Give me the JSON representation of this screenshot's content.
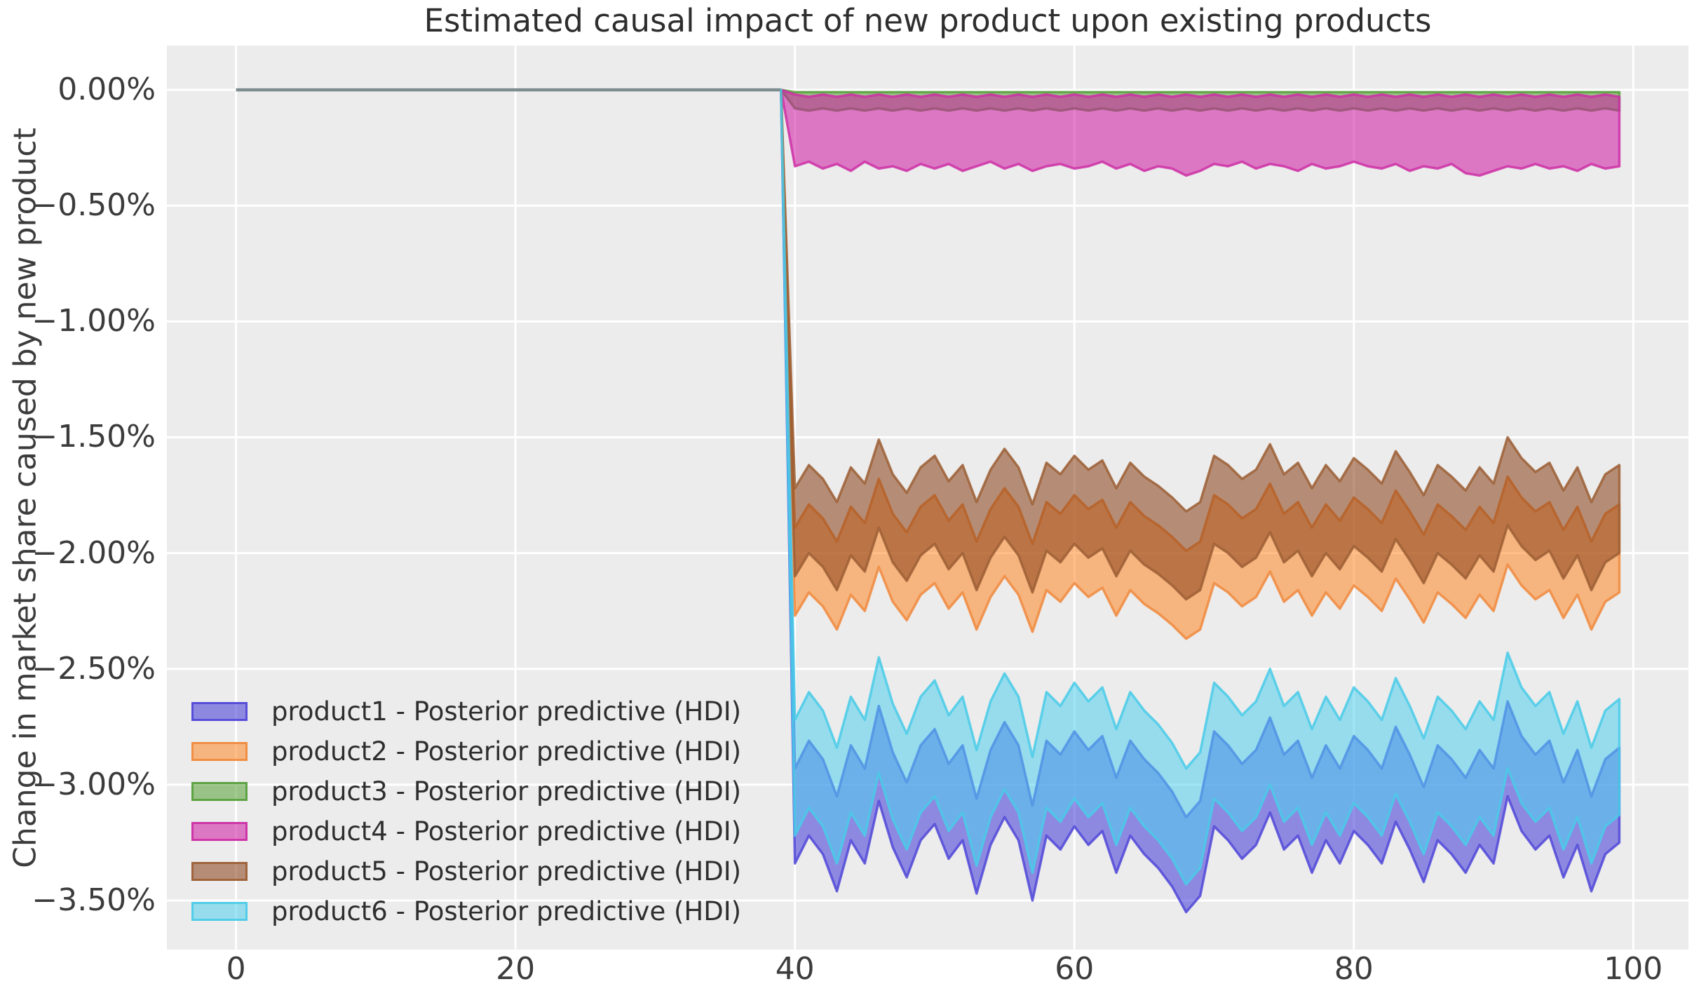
{
  "title": "Estimated causal impact of new product upon existing products",
  "axes": {
    "ylabel": "Change in market share caused by new product",
    "x_ticks": [
      {
        "value": 0,
        "label": "0"
      },
      {
        "value": 20,
        "label": "20"
      },
      {
        "value": 40,
        "label": "40"
      },
      {
        "value": 60,
        "label": "60"
      },
      {
        "value": 80,
        "label": "80"
      },
      {
        "value": 100,
        "label": "100"
      }
    ],
    "y_ticks": [
      {
        "value": 0,
        "label": "0.00%"
      },
      {
        "value": -0.5,
        "label": "−0.50%"
      },
      {
        "value": -1,
        "label": "−1.00%"
      },
      {
        "value": -1.5,
        "label": "−1.50%"
      },
      {
        "value": -2,
        "label": "−2.00%"
      },
      {
        "value": -2.5,
        "label": "−2.50%"
      },
      {
        "value": -3,
        "label": "−3.00%"
      },
      {
        "value": -3.5,
        "label": "−3.50%"
      }
    ]
  },
  "colors": {
    "figure_bg": "#ffffff",
    "plot_bg": "#ececec",
    "grid": "#ffffff",
    "zero_line": "#7d8c8f",
    "tick_text": "#3c3c3c",
    "title_text": "#2e2e2e"
  },
  "chart_data": {
    "type": "area",
    "title": "Estimated causal impact of new product upon existing products",
    "xlabel": "",
    "ylabel": "Change in market share caused by new product",
    "unit": "percent",
    "grid": true,
    "legend_position": "lower left",
    "xlim": [
      -4.95,
      103.95
    ],
    "ylim": [
      -3.712,
      0.191
    ],
    "x_tick_values": [
      0,
      20,
      40,
      60,
      80,
      100
    ],
    "y_tick_labels": [
      "0.00%",
      "−0.50%",
      "−1.00%",
      "−1.50%",
      "−2.00%",
      "−2.50%",
      "−3.00%",
      "−3.50%"
    ],
    "pre_period": {
      "x_start": 0,
      "x_end": 39,
      "value": 0
    },
    "x": [
      40,
      41,
      42,
      43,
      44,
      45,
      46,
      47,
      48,
      49,
      50,
      51,
      52,
      53,
      54,
      55,
      56,
      57,
      58,
      59,
      60,
      61,
      62,
      63,
      64,
      65,
      66,
      67,
      68,
      69,
      70,
      71,
      72,
      73,
      74,
      75,
      76,
      77,
      78,
      79,
      80,
      81,
      82,
      83,
      84,
      85,
      86,
      87,
      88,
      89,
      90,
      91,
      92,
      93,
      94,
      95,
      96,
      97,
      98,
      99
    ],
    "series": [
      {
        "name": "product1",
        "label": "product1 - Posterior predictive (HDI)",
        "color": "#4038d8",
        "edge_color": "#5048d8",
        "upper": [
          -2.93,
          -2.81,
          -2.89,
          -3.05,
          -2.83,
          -2.93,
          -2.66,
          -2.86,
          -2.99,
          -2.83,
          -2.76,
          -2.91,
          -2.83,
          -3.06,
          -2.85,
          -2.73,
          -2.83,
          -3.09,
          -2.81,
          -2.87,
          -2.77,
          -2.85,
          -2.79,
          -2.97,
          -2.81,
          -2.89,
          -2.95,
          -3.03,
          -3.14,
          -3.07,
          -2.77,
          -2.83,
          -2.91,
          -2.85,
          -2.71,
          -2.87,
          -2.81,
          -2.97,
          -2.83,
          -2.93,
          -2.79,
          -2.85,
          -2.93,
          -2.75,
          -2.87,
          -3.01,
          -2.83,
          -2.89,
          -2.97,
          -2.85,
          -2.93,
          -2.64,
          -2.79,
          -2.87,
          -2.81,
          -2.99,
          -2.85,
          -3.05,
          -2.89,
          -2.84
        ],
        "lower": [
          -3.34,
          -3.22,
          -3.3,
          -3.46,
          -3.24,
          -3.34,
          -3.07,
          -3.27,
          -3.4,
          -3.24,
          -3.17,
          -3.32,
          -3.24,
          -3.47,
          -3.26,
          -3.14,
          -3.24,
          -3.5,
          -3.22,
          -3.28,
          -3.18,
          -3.26,
          -3.2,
          -3.38,
          -3.22,
          -3.3,
          -3.36,
          -3.44,
          -3.55,
          -3.48,
          -3.18,
          -3.24,
          -3.32,
          -3.26,
          -3.12,
          -3.28,
          -3.22,
          -3.38,
          -3.24,
          -3.34,
          -3.2,
          -3.26,
          -3.34,
          -3.16,
          -3.28,
          -3.42,
          -3.24,
          -3.3,
          -3.38,
          -3.26,
          -3.34,
          -3.05,
          -3.2,
          -3.28,
          -3.22,
          -3.4,
          -3.26,
          -3.46,
          -3.3,
          -3.25
        ]
      },
      {
        "name": "product2",
        "label": "product2 - Posterior predictive (HDI)",
        "color": "#ff8725",
        "edge_color": "#f08a3e",
        "upper": [
          -1.89,
          -1.79,
          -1.85,
          -1.95,
          -1.8,
          -1.87,
          -1.68,
          -1.83,
          -1.91,
          -1.8,
          -1.75,
          -1.86,
          -1.79,
          -1.95,
          -1.81,
          -1.72,
          -1.8,
          -1.96,
          -1.78,
          -1.83,
          -1.75,
          -1.81,
          -1.77,
          -1.89,
          -1.78,
          -1.84,
          -1.88,
          -1.93,
          -1.99,
          -1.95,
          -1.75,
          -1.79,
          -1.85,
          -1.81,
          -1.7,
          -1.83,
          -1.78,
          -1.89,
          -1.79,
          -1.86,
          -1.76,
          -1.81,
          -1.87,
          -1.73,
          -1.82,
          -1.92,
          -1.79,
          -1.84,
          -1.9,
          -1.8,
          -1.87,
          -1.67,
          -1.76,
          -1.82,
          -1.78,
          -1.9,
          -1.8,
          -1.95,
          -1.83,
          -1.79
        ],
        "lower": [
          -2.27,
          -2.17,
          -2.23,
          -2.33,
          -2.18,
          -2.25,
          -2.06,
          -2.21,
          -2.29,
          -2.18,
          -2.13,
          -2.24,
          -2.17,
          -2.33,
          -2.19,
          -2.1,
          -2.18,
          -2.34,
          -2.16,
          -2.21,
          -2.13,
          -2.19,
          -2.15,
          -2.27,
          -2.16,
          -2.22,
          -2.26,
          -2.31,
          -2.37,
          -2.33,
          -2.13,
          -2.17,
          -2.23,
          -2.19,
          -2.08,
          -2.21,
          -2.16,
          -2.27,
          -2.17,
          -2.24,
          -2.14,
          -2.19,
          -2.25,
          -2.11,
          -2.2,
          -2.3,
          -2.17,
          -2.22,
          -2.28,
          -2.18,
          -2.25,
          -2.05,
          -2.14,
          -2.2,
          -2.16,
          -2.28,
          -2.18,
          -2.33,
          -2.21,
          -2.17
        ]
      },
      {
        "name": "product3",
        "label": "product3 - Posterior predictive (HDI)",
        "color": "#55a033",
        "edge_color": "#57a03c",
        "upper": [
          -0.01,
          -0.01,
          -0.01,
          -0.01,
          -0.01,
          -0.01,
          -0.01,
          -0.01,
          -0.01,
          -0.01,
          -0.01,
          -0.01,
          -0.01,
          -0.01,
          -0.01,
          -0.01,
          -0.01,
          -0.01,
          -0.01,
          -0.01,
          -0.01,
          -0.01,
          -0.01,
          -0.01,
          -0.01,
          -0.01,
          -0.01,
          -0.01,
          -0.01,
          -0.01,
          -0.01,
          -0.01,
          -0.01,
          -0.01,
          -0.01,
          -0.01,
          -0.01,
          -0.01,
          -0.01,
          -0.01,
          -0.01,
          -0.01,
          -0.01,
          -0.01,
          -0.01,
          -0.01,
          -0.01,
          -0.01,
          -0.01,
          -0.01,
          -0.01,
          -0.01,
          -0.01,
          -0.01,
          -0.01,
          -0.01,
          -0.01,
          -0.01,
          -0.01,
          -0.01
        ],
        "lower": [
          -0.08,
          -0.09,
          -0.08,
          -0.09,
          -0.08,
          -0.09,
          -0.08,
          -0.09,
          -0.08,
          -0.09,
          -0.08,
          -0.09,
          -0.08,
          -0.09,
          -0.08,
          -0.09,
          -0.08,
          -0.09,
          -0.08,
          -0.09,
          -0.08,
          -0.09,
          -0.08,
          -0.09,
          -0.08,
          -0.09,
          -0.08,
          -0.09,
          -0.08,
          -0.09,
          -0.08,
          -0.09,
          -0.08,
          -0.09,
          -0.08,
          -0.09,
          -0.08,
          -0.09,
          -0.08,
          -0.09,
          -0.08,
          -0.09,
          -0.08,
          -0.09,
          -0.08,
          -0.09,
          -0.08,
          -0.09,
          -0.08,
          -0.09,
          -0.08,
          -0.09,
          -0.08,
          -0.09,
          -0.08,
          -0.09,
          -0.08,
          -0.09,
          -0.08,
          -0.09
        ]
      },
      {
        "name": "product4",
        "label": "product4 - Posterior predictive (HDI)",
        "color": "#d018a4",
        "edge_color": "#cc2fa5",
        "upper": [
          -0.02,
          -0.03,
          -0.02,
          -0.03,
          -0.02,
          -0.03,
          -0.02,
          -0.03,
          -0.02,
          -0.03,
          -0.02,
          -0.03,
          -0.02,
          -0.03,
          -0.02,
          -0.03,
          -0.02,
          -0.03,
          -0.02,
          -0.03,
          -0.02,
          -0.03,
          -0.02,
          -0.03,
          -0.02,
          -0.03,
          -0.02,
          -0.03,
          -0.02,
          -0.03,
          -0.02,
          -0.03,
          -0.02,
          -0.03,
          -0.02,
          -0.03,
          -0.02,
          -0.03,
          -0.02,
          -0.03,
          -0.02,
          -0.03,
          -0.02,
          -0.03,
          -0.02,
          -0.03,
          -0.02,
          -0.03,
          -0.02,
          -0.03,
          -0.02,
          -0.03,
          -0.02,
          -0.03,
          -0.02,
          -0.03,
          -0.02,
          -0.03,
          -0.02,
          -0.03
        ],
        "lower": [
          -0.33,
          -0.31,
          -0.34,
          -0.32,
          -0.35,
          -0.31,
          -0.34,
          -0.33,
          -0.35,
          -0.32,
          -0.34,
          -0.32,
          -0.35,
          -0.33,
          -0.31,
          -0.34,
          -0.32,
          -0.35,
          -0.33,
          -0.32,
          -0.34,
          -0.33,
          -0.31,
          -0.34,
          -0.32,
          -0.35,
          -0.33,
          -0.34,
          -0.37,
          -0.35,
          -0.32,
          -0.33,
          -0.31,
          -0.34,
          -0.32,
          -0.33,
          -0.35,
          -0.32,
          -0.34,
          -0.33,
          -0.31,
          -0.33,
          -0.34,
          -0.32,
          -0.35,
          -0.33,
          -0.34,
          -0.32,
          -0.36,
          -0.37,
          -0.35,
          -0.33,
          -0.34,
          -0.32,
          -0.34,
          -0.33,
          -0.35,
          -0.32,
          -0.34,
          -0.33
        ]
      },
      {
        "name": "product5",
        "label": "product5 - Posterior predictive (HDI)",
        "color": "#894016",
        "edge_color": "#9c5f35",
        "upper": [
          -1.72,
          -1.62,
          -1.68,
          -1.78,
          -1.63,
          -1.7,
          -1.51,
          -1.66,
          -1.74,
          -1.63,
          -1.58,
          -1.69,
          -1.62,
          -1.78,
          -1.64,
          -1.55,
          -1.63,
          -1.79,
          -1.61,
          -1.66,
          -1.58,
          -1.64,
          -1.6,
          -1.72,
          -1.61,
          -1.67,
          -1.71,
          -1.76,
          -1.82,
          -1.78,
          -1.58,
          -1.62,
          -1.68,
          -1.64,
          -1.53,
          -1.66,
          -1.61,
          -1.72,
          -1.62,
          -1.69,
          -1.59,
          -1.64,
          -1.7,
          -1.56,
          -1.65,
          -1.75,
          -1.62,
          -1.67,
          -1.73,
          -1.63,
          -1.7,
          -1.5,
          -1.59,
          -1.65,
          -1.61,
          -1.73,
          -1.63,
          -1.78,
          -1.66,
          -1.62
        ],
        "lower": [
          -2.1,
          -2.0,
          -2.06,
          -2.16,
          -2.01,
          -2.08,
          -1.89,
          -2.04,
          -2.12,
          -2.01,
          -1.96,
          -2.07,
          -2.0,
          -2.16,
          -2.02,
          -1.93,
          -2.01,
          -2.17,
          -1.99,
          -2.04,
          -1.96,
          -2.02,
          -1.98,
          -2.1,
          -1.99,
          -2.05,
          -2.09,
          -2.14,
          -2.2,
          -2.16,
          -1.96,
          -2.0,
          -2.06,
          -2.02,
          -1.91,
          -2.04,
          -1.99,
          -2.1,
          -2.0,
          -2.07,
          -1.97,
          -2.02,
          -2.08,
          -1.94,
          -2.03,
          -2.13,
          -2.0,
          -2.05,
          -2.11,
          -2.01,
          -2.08,
          -1.88,
          -1.97,
          -2.03,
          -1.99,
          -2.11,
          -2.01,
          -2.16,
          -2.04,
          -2.0
        ]
      },
      {
        "name": "product6",
        "label": "product6 - Posterior predictive (HDI)",
        "color": "#50d0ee",
        "edge_color": "#4acbe8",
        "upper": [
          -2.72,
          -2.6,
          -2.68,
          -2.84,
          -2.62,
          -2.72,
          -2.45,
          -2.65,
          -2.78,
          -2.62,
          -2.55,
          -2.7,
          -2.62,
          -2.85,
          -2.64,
          -2.52,
          -2.62,
          -2.88,
          -2.6,
          -2.66,
          -2.56,
          -2.64,
          -2.58,
          -2.76,
          -2.6,
          -2.68,
          -2.74,
          -2.82,
          -2.93,
          -2.86,
          -2.56,
          -2.62,
          -2.7,
          -2.64,
          -2.5,
          -2.66,
          -2.6,
          -2.76,
          -2.62,
          -2.72,
          -2.58,
          -2.64,
          -2.72,
          -2.54,
          -2.66,
          -2.8,
          -2.62,
          -2.68,
          -2.76,
          -2.64,
          -2.72,
          -2.43,
          -2.58,
          -2.66,
          -2.6,
          -2.78,
          -2.64,
          -2.84,
          -2.68,
          -2.63
        ],
        "lower": [
          -3.22,
          -3.1,
          -3.18,
          -3.34,
          -3.12,
          -3.22,
          -2.95,
          -3.15,
          -3.28,
          -3.12,
          -3.05,
          -3.2,
          -3.12,
          -3.35,
          -3.14,
          -3.02,
          -3.12,
          -3.38,
          -3.1,
          -3.16,
          -3.06,
          -3.14,
          -3.08,
          -3.26,
          -3.1,
          -3.18,
          -3.24,
          -3.32,
          -3.43,
          -3.36,
          -3.06,
          -3.12,
          -3.2,
          -3.14,
          -3.0,
          -3.16,
          -3.1,
          -3.26,
          -3.12,
          -3.22,
          -3.08,
          -3.14,
          -3.22,
          -3.04,
          -3.16,
          -3.3,
          -3.12,
          -3.18,
          -3.26,
          -3.14,
          -3.22,
          -2.93,
          -3.08,
          -3.16,
          -3.1,
          -3.28,
          -3.14,
          -3.34,
          -3.18,
          -3.13
        ]
      }
    ]
  }
}
